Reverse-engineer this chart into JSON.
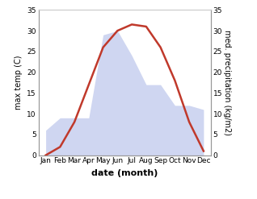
{
  "months": [
    "Jan",
    "Feb",
    "Mar",
    "Apr",
    "May",
    "Jun",
    "Jul",
    "Aug",
    "Sep",
    "Oct",
    "Nov",
    "Dec"
  ],
  "temperature": [
    0,
    2,
    8,
    17,
    26,
    30,
    31.5,
    31,
    26,
    18,
    8,
    1
  ],
  "precipitation": [
    6,
    9,
    9,
    9,
    29,
    30,
    24,
    17,
    17,
    12,
    12,
    11
  ],
  "temp_color": "#c0392b",
  "precip_color_fill": "#b0bce8",
  "background_color": "#ffffff",
  "ylim": [
    0,
    35
  ],
  "ylabel_left": "max temp (C)",
  "ylabel_right": "med. precipitation (kg/m2)",
  "xlabel": "date (month)",
  "yticks": [
    0,
    5,
    10,
    15,
    20,
    25,
    30,
    35
  ],
  "temp_linewidth": 1.8,
  "fill_alpha": 0.6,
  "tick_fontsize": 6.5,
  "label_fontsize": 7,
  "xlabel_fontsize": 8
}
